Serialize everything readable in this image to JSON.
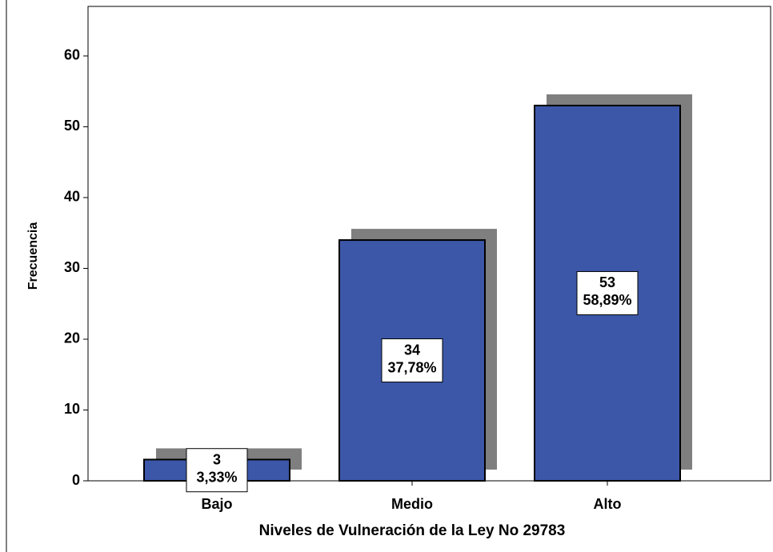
{
  "chart_data": {
    "type": "bar",
    "x_label": "Niveles de Vulneración de la Ley No 29783",
    "y_label": "Frecuencia",
    "categories": [
      "Bajo",
      "Medio",
      "Alto"
    ],
    "values": [
      3,
      34,
      53
    ],
    "percent_labels": [
      "3,33%",
      "37,78%",
      "58,89%"
    ],
    "color": "#3c57a8",
    "shadow_color": "#7f7f7f",
    "ylim": [
      0,
      67
    ],
    "yticks": [
      0,
      10,
      20,
      30,
      40,
      50,
      60
    ],
    "grid": false
  }
}
